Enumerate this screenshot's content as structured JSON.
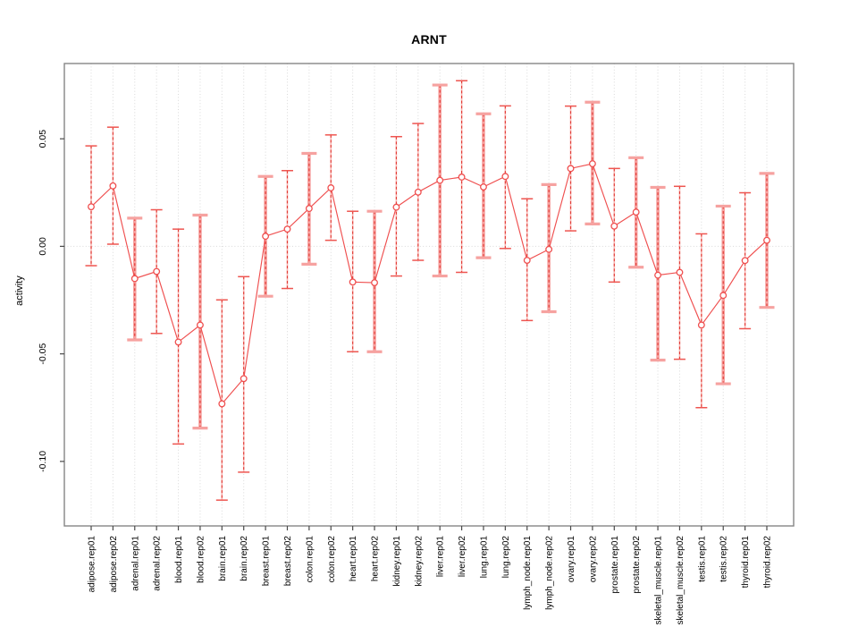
{
  "page": {
    "background": "#ffffff"
  },
  "colors": {
    "point_red": "#ef4f4f",
    "dash_red": "#e23b35",
    "bar_pink": "#f6a2a0",
    "bar_pink_light": "#f8b7b4",
    "cap_red": "#ee5550",
    "grid_gray": "#d9d9d9",
    "box_gray": "#858585",
    "tick_dark": "#4a4a4a",
    "text_black": "#000000"
  },
  "chart_data": {
    "type": "line",
    "title": "ARNT",
    "ylabel": "activity",
    "xlabel": "",
    "grid": {
      "vertical_dotted": true,
      "zero_line_dotted": true
    },
    "legend": "none",
    "ylim": [
      -0.13,
      0.085
    ],
    "yticks": [
      {
        "value": 0.05,
        "label": "0.05"
      },
      {
        "value": 0.0,
        "label": "0.00"
      },
      {
        "value": -0.05,
        "label": "-0.05"
      },
      {
        "value": -0.1,
        "label": "-0.10"
      }
    ],
    "points": [
      {
        "label": "adipose.rep01",
        "value": 0.0184,
        "lower": -0.009,
        "upper": 0.0467,
        "bar_style": "dashed"
      },
      {
        "label": "adipose.rep02",
        "value": 0.0281,
        "lower": 0.001,
        "upper": 0.0554,
        "bar_style": "dashed"
      },
      {
        "label": "adrenal.rep01",
        "value": -0.015,
        "lower": -0.0435,
        "upper": 0.0131,
        "bar_style": "solid"
      },
      {
        "label": "adrenal.rep02",
        "value": -0.0117,
        "lower": -0.0405,
        "upper": 0.017,
        "bar_style": "dashed"
      },
      {
        "label": "blood.rep01",
        "value": -0.0445,
        "lower": -0.0919,
        "upper": 0.008,
        "bar_style": "dashed"
      },
      {
        "label": "blood.rep02",
        "value": -0.0366,
        "lower": -0.0845,
        "upper": 0.0145,
        "bar_style": "solid"
      },
      {
        "label": "brain.rep01",
        "value": -0.0732,
        "lower": -0.118,
        "upper": -0.0249,
        "bar_style": "dashed"
      },
      {
        "label": "brain.rep02",
        "value": -0.0615,
        "lower": -0.105,
        "upper": -0.0141,
        "bar_style": "dashed"
      },
      {
        "label": "breast.rep01",
        "value": 0.0047,
        "lower": -0.0232,
        "upper": 0.0325,
        "bar_style": "solid"
      },
      {
        "label": "breast.rep02",
        "value": 0.008,
        "lower": -0.0196,
        "upper": 0.0352,
        "bar_style": "dashed"
      },
      {
        "label": "colon.rep01",
        "value": 0.0176,
        "lower": -0.0083,
        "upper": 0.0432,
        "bar_style": "solid"
      },
      {
        "label": "colon.rep02",
        "value": 0.0272,
        "lower": 0.0028,
        "upper": 0.0518,
        "bar_style": "dashed"
      },
      {
        "label": "heart.rep01",
        "value": -0.0166,
        "lower": -0.049,
        "upper": 0.0163,
        "bar_style": "dashed"
      },
      {
        "label": "heart.rep02",
        "value": -0.0169,
        "lower": -0.049,
        "upper": 0.0163,
        "bar_style": "solid"
      },
      {
        "label": "kidney.rep01",
        "value": 0.0182,
        "lower": -0.0138,
        "upper": 0.051,
        "bar_style": "dashed"
      },
      {
        "label": "kidney.rep02",
        "value": 0.0252,
        "lower": -0.0065,
        "upper": 0.0571,
        "bar_style": "dashed"
      },
      {
        "label": "liver.rep01",
        "value": 0.0307,
        "lower": -0.0138,
        "upper": 0.075,
        "bar_style": "solid"
      },
      {
        "label": "liver.rep02",
        "value": 0.0322,
        "lower": -0.0121,
        "upper": 0.077,
        "bar_style": "dashed"
      },
      {
        "label": "lung.rep01",
        "value": 0.0276,
        "lower": -0.0053,
        "upper": 0.0616,
        "bar_style": "solid"
      },
      {
        "label": "lung.rep02",
        "value": 0.0325,
        "lower": -0.001,
        "upper": 0.0653,
        "bar_style": "dashed"
      },
      {
        "label": "lymph_node.rep01",
        "value": -0.0065,
        "lower": -0.0345,
        "upper": 0.0221,
        "bar_style": "dashed"
      },
      {
        "label": "lymph_node.rep02",
        "value": -0.0014,
        "lower": -0.0304,
        "upper": 0.0287,
        "bar_style": "solid"
      },
      {
        "label": "ovary.rep01",
        "value": 0.0362,
        "lower": 0.0072,
        "upper": 0.0652,
        "bar_style": "dashed"
      },
      {
        "label": "ovary.rep02",
        "value": 0.0384,
        "lower": 0.0104,
        "upper": 0.067,
        "bar_style": "solid"
      },
      {
        "label": "prostate.rep01",
        "value": 0.0094,
        "lower": -0.0166,
        "upper": 0.0362,
        "bar_style": "dashed"
      },
      {
        "label": "prostate.rep02",
        "value": 0.0159,
        "lower": -0.0097,
        "upper": 0.0412,
        "bar_style": "solid"
      },
      {
        "label": "skeletal_muscle.rep01",
        "value": -0.0134,
        "lower": -0.0529,
        "upper": 0.0274,
        "bar_style": "solid"
      },
      {
        "label": "skeletal_muscle.rep02",
        "value": -0.0121,
        "lower": -0.0525,
        "upper": 0.0279,
        "bar_style": "dashed"
      },
      {
        "label": "testis.rep01",
        "value": -0.0366,
        "lower": -0.075,
        "upper": 0.0058,
        "bar_style": "dashed"
      },
      {
        "label": "testis.rep02",
        "value": -0.0228,
        "lower": -0.0639,
        "upper": 0.0187,
        "bar_style": "solid"
      },
      {
        "label": "thyroid.rep01",
        "value": -0.0066,
        "lower": -0.0383,
        "upper": 0.0249,
        "bar_style": "dashed"
      },
      {
        "label": "thyroid.rep02",
        "value": 0.0028,
        "lower": -0.0284,
        "upper": 0.0339,
        "bar_style": "solid"
      }
    ]
  }
}
